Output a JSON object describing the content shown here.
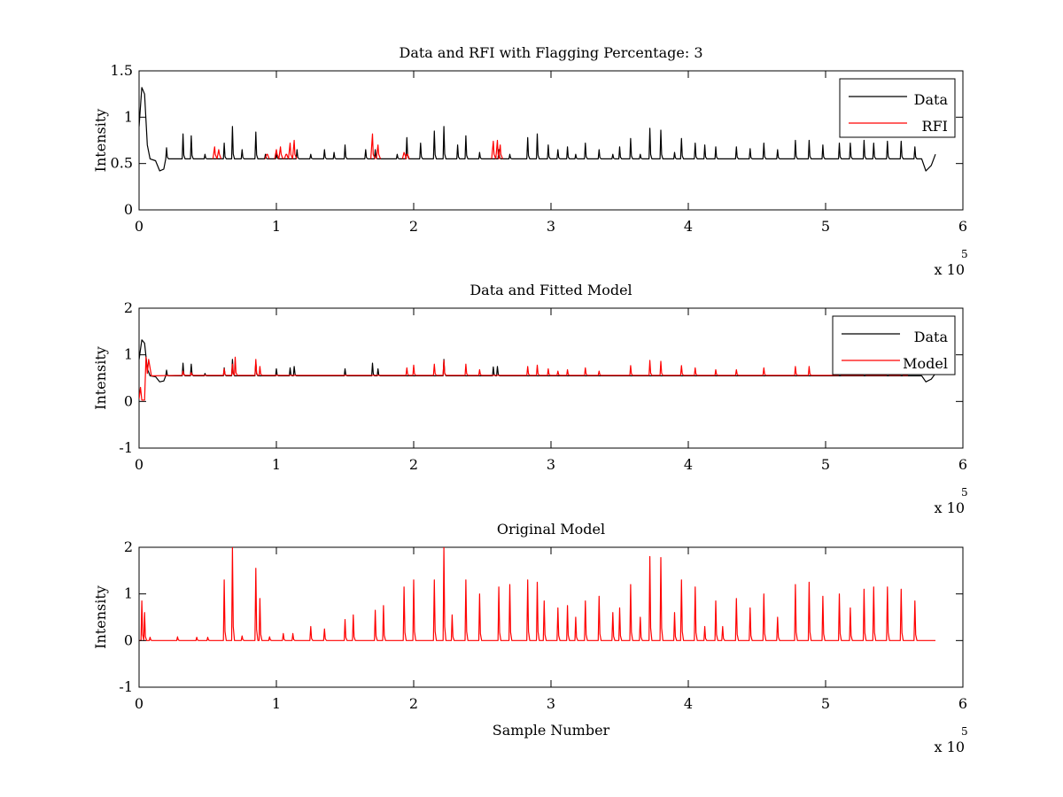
{
  "chart_data": [
    {
      "type": "line",
      "title": "Data and RFI with Flagging Percentage: 3",
      "xlabel": "",
      "ylabel": "Intensity",
      "xlim": [
        0,
        600000
      ],
      "ylim": [
        0,
        1.5
      ],
      "xticks": [
        "0",
        "1",
        "2",
        "3",
        "4",
        "5",
        "6"
      ],
      "yticks": [
        "0",
        "0.5",
        "1",
        "1.5"
      ],
      "xexponent": {
        "base": "x 10",
        "power": "5"
      },
      "legend": {
        "placement": "top-right",
        "entries": [
          {
            "name": "Data",
            "color": "#000000"
          },
          {
            "name": "RFI",
            "color": "#ff0000"
          }
        ]
      },
      "series": [
        {
          "name": "Data",
          "color": "#000000",
          "baseline": 0.55,
          "x_end": 580000,
          "points": [
            [
              0,
              0.9
            ],
            [
              2000,
              1.32
            ],
            [
              4000,
              1.25
            ],
            [
              6000,
              0.7
            ],
            [
              8000,
              0.55
            ],
            [
              12000,
              0.53
            ],
            [
              15000,
              0.42
            ],
            [
              18000,
              0.44
            ],
            [
              22000,
              0.55
            ],
            [
              570000,
              0.55
            ],
            [
              573000,
              0.42
            ],
            [
              577000,
              0.48
            ],
            [
              580000,
              0.6
            ]
          ],
          "spikes": [
            [
              20000,
              0.67
            ],
            [
              32000,
              0.82
            ],
            [
              38000,
              0.8
            ],
            [
              48000,
              0.6
            ],
            [
              62000,
              0.72
            ],
            [
              68000,
              0.9
            ],
            [
              75000,
              0.65
            ],
            [
              85000,
              0.84
            ],
            [
              92000,
              0.6
            ],
            [
              100000,
              0.62
            ],
            [
              115000,
              0.65
            ],
            [
              125000,
              0.6
            ],
            [
              135000,
              0.65
            ],
            [
              142000,
              0.62
            ],
            [
              150000,
              0.7
            ],
            [
              165000,
              0.65
            ],
            [
              172000,
              0.65
            ],
            [
              188000,
              0.6
            ],
            [
              195000,
              0.78
            ],
            [
              205000,
              0.72
            ],
            [
              215000,
              0.85
            ],
            [
              222000,
              0.9
            ],
            [
              232000,
              0.7
            ],
            [
              238000,
              0.8
            ],
            [
              248000,
              0.62
            ],
            [
              262000,
              0.65
            ],
            [
              270000,
              0.6
            ],
            [
              283000,
              0.78
            ],
            [
              290000,
              0.82
            ],
            [
              298000,
              0.7
            ],
            [
              305000,
              0.65
            ],
            [
              312000,
              0.68
            ],
            [
              318000,
              0.6
            ],
            [
              325000,
              0.72
            ],
            [
              335000,
              0.65
            ],
            [
              345000,
              0.6
            ],
            [
              350000,
              0.68
            ],
            [
              358000,
              0.77
            ],
            [
              365000,
              0.6
            ],
            [
              372000,
              0.88
            ],
            [
              380000,
              0.86
            ],
            [
              390000,
              0.62
            ],
            [
              395000,
              0.77
            ],
            [
              405000,
              0.72
            ],
            [
              412000,
              0.7
            ],
            [
              420000,
              0.68
            ],
            [
              435000,
              0.68
            ],
            [
              445000,
              0.66
            ],
            [
              455000,
              0.72
            ],
            [
              465000,
              0.65
            ],
            [
              478000,
              0.75
            ],
            [
              488000,
              0.75
            ],
            [
              498000,
              0.7
            ],
            [
              510000,
              0.72
            ],
            [
              518000,
              0.72
            ],
            [
              528000,
              0.75
            ],
            [
              535000,
              0.72
            ],
            [
              545000,
              0.74
            ],
            [
              555000,
              0.74
            ],
            [
              565000,
              0.68
            ]
          ]
        },
        {
          "name": "RFI",
          "color": "#ff0000",
          "spikes": [
            [
              55000,
              0.68
            ],
            [
              58000,
              0.65
            ],
            [
              93000,
              0.6
            ],
            [
              100000,
              0.65
            ],
            [
              103000,
              0.68
            ],
            [
              107000,
              0.6
            ],
            [
              110000,
              0.72
            ],
            [
              113000,
              0.75
            ],
            [
              170000,
              0.82
            ],
            [
              174000,
              0.7
            ],
            [
              193000,
              0.62
            ],
            [
              195000,
              0.6
            ],
            [
              258000,
              0.74
            ],
            [
              261000,
              0.75
            ],
            [
              263000,
              0.7
            ]
          ]
        }
      ]
    },
    {
      "type": "line",
      "title": "Data and Fitted Model",
      "xlabel": "",
      "ylabel": "Intensity",
      "xlim": [
        0,
        600000
      ],
      "ylim": [
        -1,
        2
      ],
      "xticks": [
        "0",
        "1",
        "2",
        "3",
        "4",
        "5",
        "6"
      ],
      "yticks": [
        "-1",
        "0",
        "1",
        "2"
      ],
      "xexponent": {
        "base": "x 10",
        "power": "5"
      },
      "legend": {
        "placement": "top-right",
        "entries": [
          {
            "name": "Data",
            "color": "#000000"
          },
          {
            "name": "Model",
            "color": "#ff0000"
          }
        ]
      },
      "series": [
        {
          "name": "Data",
          "color": "#000000",
          "baseline": 0.55,
          "x_end": 580000,
          "points": [
            [
              0,
              0.9
            ],
            [
              2000,
              1.32
            ],
            [
              4000,
              1.25
            ],
            [
              6000,
              0.7
            ],
            [
              8000,
              0.55
            ],
            [
              12000,
              0.53
            ],
            [
              15000,
              0.42
            ],
            [
              18000,
              0.44
            ],
            [
              22000,
              0.55
            ],
            [
              570000,
              0.55
            ],
            [
              573000,
              0.42
            ],
            [
              577000,
              0.48
            ],
            [
              580000,
              0.6
            ]
          ],
          "spikes": [
            [
              20000,
              0.67
            ],
            [
              32000,
              0.82
            ],
            [
              38000,
              0.8
            ],
            [
              48000,
              0.6
            ],
            [
              62000,
              0.72
            ],
            [
              68000,
              0.9
            ],
            [
              85000,
              0.84
            ],
            [
              100000,
              0.7
            ],
            [
              110000,
              0.72
            ],
            [
              113000,
              0.75
            ],
            [
              150000,
              0.7
            ],
            [
              170000,
              0.82
            ],
            [
              174000,
              0.7
            ],
            [
              222000,
              0.9
            ],
            [
              258000,
              0.74
            ],
            [
              261000,
              0.75
            ]
          ]
        },
        {
          "name": "Model",
          "color": "#ff0000",
          "baseline": 0.56,
          "x_end": 560000,
          "points": [
            [
              0,
              0.05
            ],
            [
              1000,
              0.3
            ],
            [
              2000,
              0.03
            ],
            [
              4000,
              0.03
            ],
            [
              5000,
              0.95
            ],
            [
              6000,
              0.6
            ],
            [
              7000,
              0.9
            ],
            [
              9000,
              0.55
            ],
            [
              11000,
              0.55
            ]
          ],
          "spikes": [
            [
              32000,
              0.65
            ],
            [
              38000,
              0.62
            ],
            [
              62000,
              0.7
            ],
            [
              68000,
              0.8
            ],
            [
              70000,
              0.95
            ],
            [
              85000,
              0.9
            ],
            [
              88000,
              0.75
            ],
            [
              195000,
              0.72
            ],
            [
              200000,
              0.78
            ],
            [
              215000,
              0.8
            ],
            [
              222000,
              0.88
            ],
            [
              238000,
              0.8
            ],
            [
              248000,
              0.68
            ],
            [
              283000,
              0.75
            ],
            [
              290000,
              0.78
            ],
            [
              298000,
              0.7
            ],
            [
              305000,
              0.65
            ],
            [
              312000,
              0.68
            ],
            [
              325000,
              0.72
            ],
            [
              335000,
              0.65
            ],
            [
              358000,
              0.77
            ],
            [
              372000,
              0.88
            ],
            [
              380000,
              0.86
            ],
            [
              395000,
              0.77
            ],
            [
              405000,
              0.72
            ],
            [
              420000,
              0.68
            ],
            [
              435000,
              0.68
            ],
            [
              455000,
              0.72
            ],
            [
              478000,
              0.75
            ],
            [
              488000,
              0.75
            ],
            [
              510000,
              0.72
            ],
            [
              528000,
              0.75
            ],
            [
              545000,
              0.74
            ],
            [
              555000,
              0.74
            ]
          ]
        }
      ]
    },
    {
      "type": "line",
      "title": "Original Model",
      "xlabel": "Sample Number",
      "ylabel": "Intensity",
      "xlim": [
        0,
        600000
      ],
      "ylim": [
        -1,
        2
      ],
      "xticks": [
        "0",
        "1",
        "2",
        "3",
        "4",
        "5",
        "6"
      ],
      "yticks": [
        "-1",
        "0",
        "1",
        "2"
      ],
      "xexponent": {
        "base": "x 10",
        "power": "5"
      },
      "series": [
        {
          "name": "Model",
          "color": "#ff0000",
          "baseline": 0.0,
          "x_end": 580000,
          "points": [],
          "spikes": [
            [
              2000,
              0.85
            ],
            [
              4000,
              0.6
            ],
            [
              8000,
              0.07
            ],
            [
              28000,
              0.08
            ],
            [
              42000,
              0.07
            ],
            [
              50000,
              0.07
            ],
            [
              62000,
              1.3
            ],
            [
              68000,
              2.0
            ],
            [
              75000,
              0.1
            ],
            [
              85000,
              1.55
            ],
            [
              88000,
              0.9
            ],
            [
              95000,
              0.08
            ],
            [
              105000,
              0.15
            ],
            [
              112000,
              0.15
            ],
            [
              125000,
              0.3
            ],
            [
              135000,
              0.25
            ],
            [
              150000,
              0.45
            ],
            [
              156000,
              0.55
            ],
            [
              172000,
              0.65
            ],
            [
              178000,
              0.75
            ],
            [
              193000,
              1.15
            ],
            [
              200000,
              1.3
            ],
            [
              215000,
              1.3
            ],
            [
              222000,
              2.0
            ],
            [
              228000,
              0.55
            ],
            [
              238000,
              1.3
            ],
            [
              248000,
              1.0
            ],
            [
              262000,
              1.15
            ],
            [
              270000,
              1.2
            ],
            [
              283000,
              1.3
            ],
            [
              290000,
              1.25
            ],
            [
              295000,
              0.85
            ],
            [
              305000,
              0.7
            ],
            [
              312000,
              0.75
            ],
            [
              318000,
              0.5
            ],
            [
              325000,
              0.85
            ],
            [
              335000,
              0.95
            ],
            [
              345000,
              0.6
            ],
            [
              350000,
              0.7
            ],
            [
              358000,
              1.2
            ],
            [
              365000,
              0.5
            ],
            [
              372000,
              1.8
            ],
            [
              380000,
              1.78
            ],
            [
              390000,
              0.6
            ],
            [
              395000,
              1.3
            ],
            [
              405000,
              1.15
            ],
            [
              412000,
              0.3
            ],
            [
              420000,
              0.85
            ],
            [
              425000,
              0.3
            ],
            [
              435000,
              0.9
            ],
            [
              445000,
              0.7
            ],
            [
              455000,
              1.0
            ],
            [
              465000,
              0.5
            ],
            [
              478000,
              1.2
            ],
            [
              488000,
              1.25
            ],
            [
              498000,
              0.95
            ],
            [
              510000,
              1.0
            ],
            [
              518000,
              0.7
            ],
            [
              528000,
              1.1
            ],
            [
              535000,
              1.15
            ],
            [
              545000,
              1.15
            ],
            [
              555000,
              1.1
            ],
            [
              565000,
              0.85
            ]
          ]
        }
      ]
    }
  ]
}
